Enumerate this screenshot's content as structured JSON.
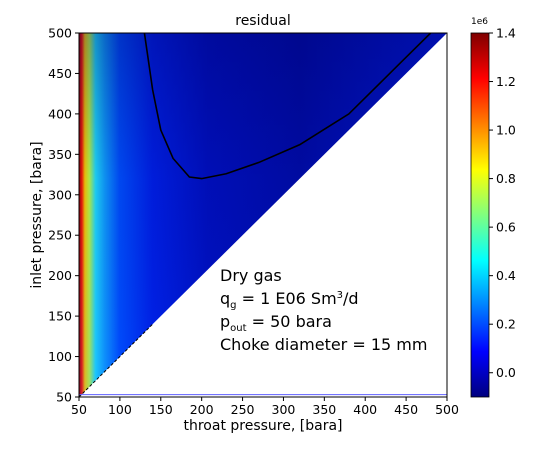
{
  "chart_data": {
    "type": "heatmap",
    "title": "residual",
    "xlabel": "throat pressure, [bara]",
    "ylabel": "inlet pressure, [bara]",
    "xlim": [
      50,
      500
    ],
    "ylim": [
      50,
      500
    ],
    "x_ticks": [
      50,
      100,
      150,
      200,
      250,
      300,
      350,
      400,
      450,
      500
    ],
    "y_ticks": [
      50,
      100,
      150,
      200,
      250,
      300,
      350,
      400,
      450,
      500
    ],
    "colorbar": {
      "colormap": "jet",
      "range": [
        -0.1,
        1.4
      ],
      "ticks": [
        0.0,
        0.2,
        0.4,
        0.6,
        0.8,
        1.0,
        1.2,
        1.4
      ],
      "offset_text": "1e6"
    },
    "masked_region": "throat pressure > inlet pressure (white)",
    "zero_contour": {
      "color": "#000000",
      "points": [
        [
          130,
          500
        ],
        [
          140,
          430
        ],
        [
          150,
          380
        ],
        [
          165,
          345
        ],
        [
          185,
          322
        ],
        [
          200,
          320
        ],
        [
          230,
          326
        ],
        [
          270,
          340
        ],
        [
          320,
          362
        ],
        [
          380,
          400
        ],
        [
          440,
          460
        ],
        [
          480,
          500
        ]
      ]
    },
    "annotation": {
      "line1": "Dry gas",
      "line2_main": "q",
      "line2_sub": "g",
      "line2_rest": " = 1 E06 Sm",
      "line2_sup": "3",
      "line2_end": "/d",
      "line3_main": "p",
      "line3_sub": "out",
      "line3_rest": " = 50 bara",
      "line4": "Choke diameter = 15 mm"
    }
  }
}
